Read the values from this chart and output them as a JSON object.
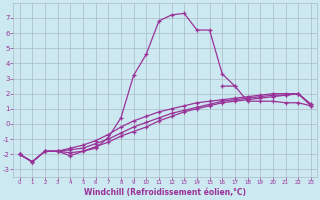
{
  "xlabel": "Windchill (Refroidissement éolien,°C)",
  "background_color": "#cce8f0",
  "line_color": "#993399",
  "grid_color": "#aabbc8",
  "xlim": [
    -0.5,
    23.5
  ],
  "ylim": [
    -3.5,
    8.0
  ],
  "yticks": [
    -3,
    -2,
    -1,
    0,
    1,
    2,
    3,
    4,
    5,
    6,
    7
  ],
  "xticks": [
    0,
    1,
    2,
    3,
    4,
    5,
    6,
    7,
    8,
    9,
    10,
    11,
    12,
    13,
    14,
    15,
    16,
    17,
    18,
    19,
    20,
    21,
    22,
    23
  ],
  "lines": [
    {
      "x": [
        0,
        1,
        2,
        3,
        4,
        5,
        6,
        7,
        8,
        9,
        10,
        11,
        12,
        13,
        14,
        15,
        16,
        17,
        18,
        19,
        20,
        21,
        22,
        23
      ],
      "y": [
        -2.0,
        -2.5,
        -1.8,
        -1.8,
        -2.1,
        -1.8,
        -1.6,
        -0.9,
        0.4,
        3.2,
        4.6,
        6.8,
        7.2,
        7.3,
        6.2,
        6.2,
        3.3,
        2.5,
        null,
        null,
        null,
        null,
        null,
        null
      ]
    },
    {
      "x": [
        0,
        1,
        2,
        3,
        4,
        5,
        6,
        7,
        8,
        9,
        10,
        11,
        12,
        13,
        14,
        15,
        16,
        17,
        18,
        19,
        20,
        21,
        22,
        23
      ],
      "y": [
        -2.0,
        -2.5,
        -1.8,
        -1.8,
        -1.9,
        -1.8,
        -1.5,
        -1.2,
        -0.8,
        -0.5,
        -0.2,
        0.2,
        0.5,
        0.8,
        1.0,
        1.2,
        1.4,
        1.5,
        1.6,
        1.7,
        1.8,
        1.9,
        2.0,
        1.2
      ]
    },
    {
      "x": [
        0,
        1,
        2,
        3,
        4,
        5,
        6,
        7,
        8,
        9,
        10,
        11,
        12,
        13,
        14,
        15,
        16,
        17,
        18,
        19,
        20,
        21,
        22,
        23
      ],
      "y": [
        -2.0,
        -2.5,
        -1.8,
        -1.8,
        -1.7,
        -1.6,
        -1.3,
        -1.0,
        -0.6,
        -0.2,
        0.1,
        0.4,
        0.7,
        0.9,
        1.1,
        1.3,
        1.5,
        1.6,
        1.7,
        1.8,
        1.9,
        1.9,
        2.0,
        1.3
      ]
    },
    {
      "x": [
        0,
        1,
        2,
        3,
        4,
        5,
        6,
        7,
        8,
        9,
        10,
        11,
        12,
        13,
        14,
        15,
        16,
        17,
        18,
        19,
        20,
        21,
        22,
        23
      ],
      "y": [
        -2.0,
        -2.5,
        -1.8,
        -1.8,
        -1.6,
        -1.4,
        -1.1,
        -0.7,
        -0.2,
        0.2,
        0.5,
        0.8,
        1.0,
        1.2,
        1.4,
        1.5,
        1.6,
        1.7,
        1.8,
        1.9,
        2.0,
        2.0,
        2.0,
        1.3
      ]
    },
    {
      "x": [
        16,
        17,
        18,
        19,
        20,
        21,
        22,
        23
      ],
      "y": [
        2.5,
        2.5,
        1.5,
        1.5,
        1.5,
        1.4,
        1.4,
        1.2
      ]
    }
  ]
}
